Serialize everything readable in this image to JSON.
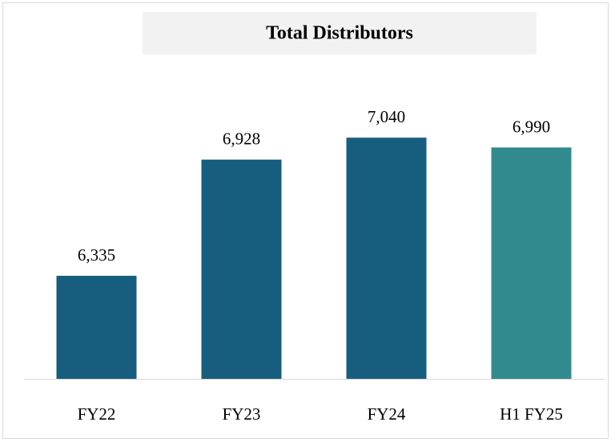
{
  "chart_data": {
    "type": "bar",
    "title": "Total Distributors",
    "categories": [
      "FY22",
      "FY23",
      "FY24",
      "H1 FY25"
    ],
    "values": [
      6335,
      6928,
      7040,
      6990
    ],
    "value_labels": [
      "6,335",
      "6,928",
      "7,040",
      "6,990"
    ],
    "colors": [
      "#175e7e",
      "#175e7e",
      "#175e7e",
      "#318b8e"
    ],
    "ylim": [
      5809,
      7200
    ]
  }
}
